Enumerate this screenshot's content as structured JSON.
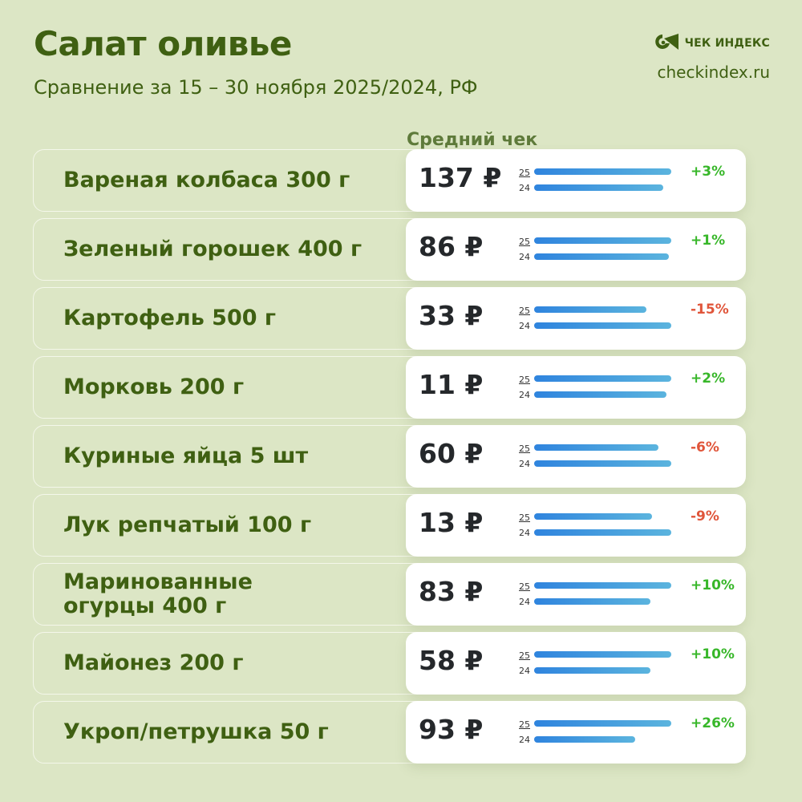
{
  "header": {
    "title": "Салат оливье",
    "subtitle": "Сравнение за 15 – 30 ноября 2025/2024, РФ",
    "column_header": "Средний чек"
  },
  "brand": {
    "name": "ЧЕК ИНДЕКС",
    "url": "checkindex.ru",
    "icon": "checkindex-logo-icon"
  },
  "colors": {
    "background": "#dce6c5",
    "text_green": "#3f6012",
    "bar_start": "#2f84de",
    "bar_end": "#5bb4de",
    "positive": "#38b72a",
    "negative": "#e0553a"
  },
  "legend": {
    "year_2025": "25",
    "year_2024": "24"
  },
  "rows": [
    {
      "label": "Вареная колбаса 300 г",
      "price": "137 ₽",
      "change": "+3%",
      "bar25": 171,
      "bar24": 161,
      "positive": true
    },
    {
      "label": "Зеленый горошек 400 г",
      "price": "86 ₽",
      "change": "+1%",
      "bar25": 171,
      "bar24": 168,
      "positive": true
    },
    {
      "label": "Картофель 500 г",
      "price": "33 ₽",
      "change": "-15%",
      "bar25": 140,
      "bar24": 171,
      "positive": false
    },
    {
      "label": "Морковь 200 г",
      "price": "11 ₽",
      "change": "+2%",
      "bar25": 171,
      "bar24": 165,
      "positive": true
    },
    {
      "label": "Куриные яйца 5 шт",
      "price": "60 ₽",
      "change": "-6%",
      "bar25": 155,
      "bar24": 171,
      "positive": false
    },
    {
      "label": "Лук репчатый 100 г",
      "price": "13 ₽",
      "change": "-9%",
      "bar25": 147,
      "bar24": 171,
      "positive": false
    },
    {
      "label": "Маринованные огурцы 400 г",
      "price": "83 ₽",
      "change": "+10%",
      "bar25": 171,
      "bar24": 145,
      "positive": true
    },
    {
      "label": "Майонез 200 г",
      "price": "58 ₽",
      "change": "+10%",
      "bar25": 171,
      "bar24": 145,
      "positive": true
    },
    {
      "label": "Укроп/петрушка 50 г",
      "price": "93 ₽",
      "change": "+26%",
      "bar25": 171,
      "bar24": 126,
      "positive": true
    }
  ],
  "chart_data": {
    "type": "bar",
    "title": "Салат оливье",
    "subtitle": "Сравнение за 15 – 30 ноября 2025/2024, РФ",
    "ylabel": "Средний чек",
    "categories": [
      "Вареная колбаса 300 г",
      "Зеленый горошек 400 г",
      "Картофель 500 г",
      "Морковь 200 г",
      "Куриные яйца 5 шт",
      "Лук репчатый 100 г",
      "Маринованные огурцы 400 г",
      "Майонез 200 г",
      "Укроп/петрушка 50 г"
    ],
    "series": [
      {
        "name": "2025 (25)",
        "values": [
          137,
          86,
          33,
          11,
          60,
          13,
          83,
          58,
          93
        ]
      },
      {
        "name": "2024 (24)",
        "values": [
          133,
          85,
          39,
          10.8,
          64,
          14.3,
          75.5,
          52.7,
          73.8
        ]
      }
    ],
    "change_pct": [
      "+3%",
      "+1%",
      "-15%",
      "+2%",
      "-6%",
      "-9%",
      "+10%",
      "+10%",
      "+26%"
    ],
    "unit": "₽",
    "orientation": "horizontal",
    "legend": [
      "25",
      "24"
    ],
    "grid": false
  }
}
